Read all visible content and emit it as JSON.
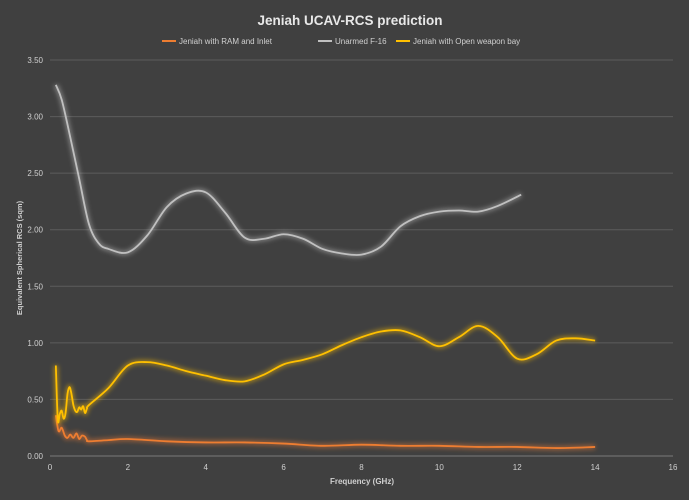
{
  "chart_data": {
    "type": "line",
    "title": "Jeniah UCAV-RCS prediction",
    "xlabel": "Frequency (GHz)",
    "ylabel": "Equivalent Spherical RCS (sqm)",
    "xlim": [
      0,
      16
    ],
    "ylim": [
      0,
      3.5
    ],
    "xticks": [
      0,
      2,
      4,
      6,
      8,
      10,
      12,
      14,
      16
    ],
    "yticks": [
      0,
      0.5,
      1.0,
      1.5,
      2.0,
      2.5,
      3.0,
      3.5
    ],
    "ytick_labels": [
      "0.00",
      "0.50",
      "1.00",
      "1.50",
      "2.00",
      "2.50",
      "3.00",
      "3.50"
    ],
    "grid": "horizontal",
    "legend": "top",
    "series": [
      {
        "name": "Jeniah with RAM and Inlet",
        "color": "#ed7d31",
        "x": [
          0.15,
          0.22,
          0.3,
          0.38,
          0.45,
          0.52,
          0.6,
          0.68,
          0.75,
          0.82,
          0.9,
          0.95,
          1.0,
          1.5,
          2.0,
          3.0,
          4.0,
          5.0,
          6.0,
          7.0,
          8.0,
          9.0,
          10.0,
          11.0,
          12.0,
          13.0,
          14.0
        ],
        "y": [
          0.36,
          0.22,
          0.25,
          0.18,
          0.16,
          0.19,
          0.16,
          0.2,
          0.15,
          0.18,
          0.17,
          0.14,
          0.13,
          0.14,
          0.15,
          0.13,
          0.12,
          0.12,
          0.11,
          0.09,
          0.1,
          0.09,
          0.09,
          0.08,
          0.08,
          0.07,
          0.08
        ]
      },
      {
        "name": "Unarmed F-16",
        "color": "#c0c0c0",
        "x": [
          0.15,
          0.3,
          0.5,
          0.75,
          1.0,
          1.25,
          1.5,
          2.0,
          2.5,
          3.0,
          3.5,
          4.0,
          4.5,
          5.0,
          5.5,
          6.0,
          6.5,
          7.0,
          7.5,
          8.0,
          8.5,
          9.0,
          9.5,
          10.0,
          10.5,
          11.0,
          11.5,
          12.1
        ],
        "y": [
          3.28,
          3.15,
          2.85,
          2.45,
          2.05,
          1.88,
          1.83,
          1.8,
          1.95,
          2.2,
          2.32,
          2.33,
          2.15,
          1.93,
          1.92,
          1.96,
          1.92,
          1.83,
          1.79,
          1.78,
          1.85,
          2.03,
          2.12,
          2.16,
          2.17,
          2.16,
          2.21,
          2.31
        ]
      },
      {
        "name": "Jeniah with Open weapon bay",
        "color": "#ffc000",
        "x": [
          0.15,
          0.2,
          0.25,
          0.3,
          0.35,
          0.4,
          0.45,
          0.5,
          0.55,
          0.6,
          0.65,
          0.7,
          0.75,
          0.8,
          0.85,
          0.9,
          0.95,
          1.0,
          1.5,
          2.0,
          2.5,
          3.0,
          3.5,
          4.0,
          4.5,
          5.0,
          5.5,
          6.0,
          6.5,
          7.0,
          7.5,
          8.0,
          8.5,
          9.0,
          9.5,
          10.0,
          10.5,
          11.0,
          11.5,
          12.0,
          12.5,
          13.0,
          13.5,
          14.0
        ],
        "y": [
          0.8,
          0.32,
          0.37,
          0.4,
          0.33,
          0.38,
          0.55,
          0.61,
          0.55,
          0.45,
          0.4,
          0.39,
          0.43,
          0.41,
          0.44,
          0.38,
          0.42,
          0.45,
          0.6,
          0.8,
          0.83,
          0.8,
          0.75,
          0.71,
          0.67,
          0.66,
          0.72,
          0.81,
          0.85,
          0.9,
          0.98,
          1.05,
          1.1,
          1.11,
          1.05,
          0.97,
          1.05,
          1.15,
          1.05,
          0.86,
          0.9,
          1.02,
          1.04,
          1.02
        ]
      }
    ]
  }
}
